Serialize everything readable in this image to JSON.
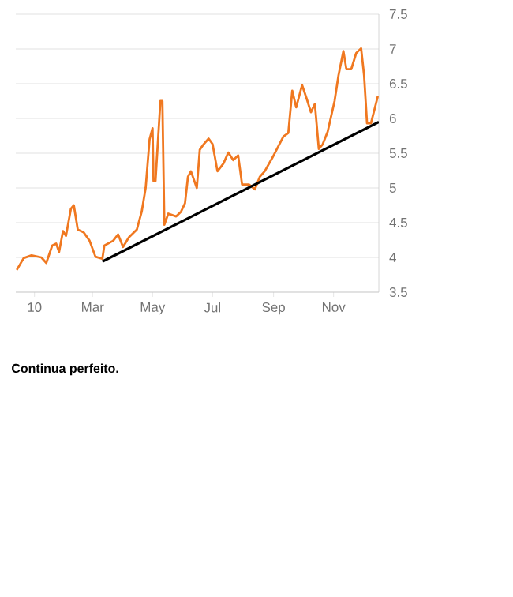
{
  "chart_data": {
    "type": "line",
    "xlim": [
      "2009-12-13",
      "2010-12-17"
    ],
    "xticks": [
      {
        "value": "2010-01-01",
        "label": "10"
      },
      {
        "value": "2010-03-01",
        "label": "Mar"
      },
      {
        "value": "2010-05-01",
        "label": "May"
      },
      {
        "value": "2010-07-01",
        "label": "Jul"
      },
      {
        "value": "2010-09-01",
        "label": "Sep"
      },
      {
        "value": "2010-11-01",
        "label": "Nov"
      }
    ],
    "ylim": [
      3.5,
      7.5
    ],
    "yticks": [
      3.5,
      4,
      4.5,
      5,
      5.5,
      6,
      6.5,
      7,
      7.5
    ],
    "grid": "y",
    "series": [
      {
        "color": "#f07820",
        "x": [
          "2009-12-14",
          "2009-12-21",
          "2009-12-29",
          "2010-01-08",
          "2010-01-13",
          "2010-01-19",
          "2010-01-23",
          "2010-01-26",
          "2010-01-30",
          "2010-02-02",
          "2010-02-07",
          "2010-02-10",
          "2010-02-14",
          "2010-02-20",
          "2010-02-26",
          "2010-03-04",
          "2010-03-11",
          "2010-03-13",
          "2010-03-22",
          "2010-03-27",
          "2010-04-01",
          "2010-04-07",
          "2010-04-15",
          "2010-04-20",
          "2010-04-24",
          "2010-04-28",
          "2010-05-01",
          "2010-05-02",
          "2010-05-04",
          "2010-05-09",
          "2010-05-11",
          "2010-05-13",
          "2010-05-17",
          "2010-05-25",
          "2010-05-30",
          "2010-06-03",
          "2010-06-06",
          "2010-06-09",
          "2010-06-15",
          "2010-06-18",
          "2010-06-22",
          "2010-06-27",
          "2010-07-01",
          "2010-07-06",
          "2010-07-12",
          "2010-07-17",
          "2010-07-22",
          "2010-07-27",
          "2010-07-31",
          "2010-08-07",
          "2010-08-13",
          "2010-08-18",
          "2010-08-23",
          "2010-08-31",
          "2010-09-11",
          "2010-09-16",
          "2010-09-20",
          "2010-09-24",
          "2010-09-30",
          "2010-10-05",
          "2010-10-09",
          "2010-10-13",
          "2010-10-17",
          "2010-10-21",
          "2010-10-26",
          "2010-11-02",
          "2010-11-06",
          "2010-11-11",
          "2010-11-14",
          "2010-11-19",
          "2010-11-24",
          "2010-11-29",
          "2010-12-02",
          "2010-12-05",
          "2010-12-09",
          "2010-12-16"
        ],
        "values": [
          3.82,
          3.99,
          4.03,
          4.0,
          3.92,
          4.17,
          4.2,
          4.08,
          4.38,
          4.31,
          4.7,
          4.75,
          4.4,
          4.36,
          4.24,
          4.01,
          3.98,
          4.17,
          4.24,
          4.33,
          4.15,
          4.29,
          4.4,
          4.66,
          5.0,
          5.7,
          5.86,
          5.1,
          5.1,
          6.25,
          6.25,
          4.47,
          4.63,
          4.59,
          4.66,
          4.78,
          5.16,
          5.24,
          5.0,
          5.55,
          5.63,
          5.71,
          5.63,
          5.24,
          5.35,
          5.51,
          5.4,
          5.47,
          5.05,
          5.05,
          4.98,
          5.16,
          5.24,
          5.44,
          5.74,
          5.79,
          6.4,
          6.16,
          6.48,
          6.27,
          6.09,
          6.21,
          5.56,
          5.63,
          5.81,
          6.25,
          6.62,
          6.97,
          6.71,
          6.71,
          6.94,
          7.01,
          6.62,
          5.93,
          5.93,
          6.32
        ]
      },
      {
        "type": "line",
        "color": "#000000",
        "x": [
          "2010-03-11",
          "2010-12-17"
        ],
        "values": [
          3.94,
          5.95
        ]
      }
    ],
    "annotations": [
      "Continua perfeito."
    ]
  }
}
